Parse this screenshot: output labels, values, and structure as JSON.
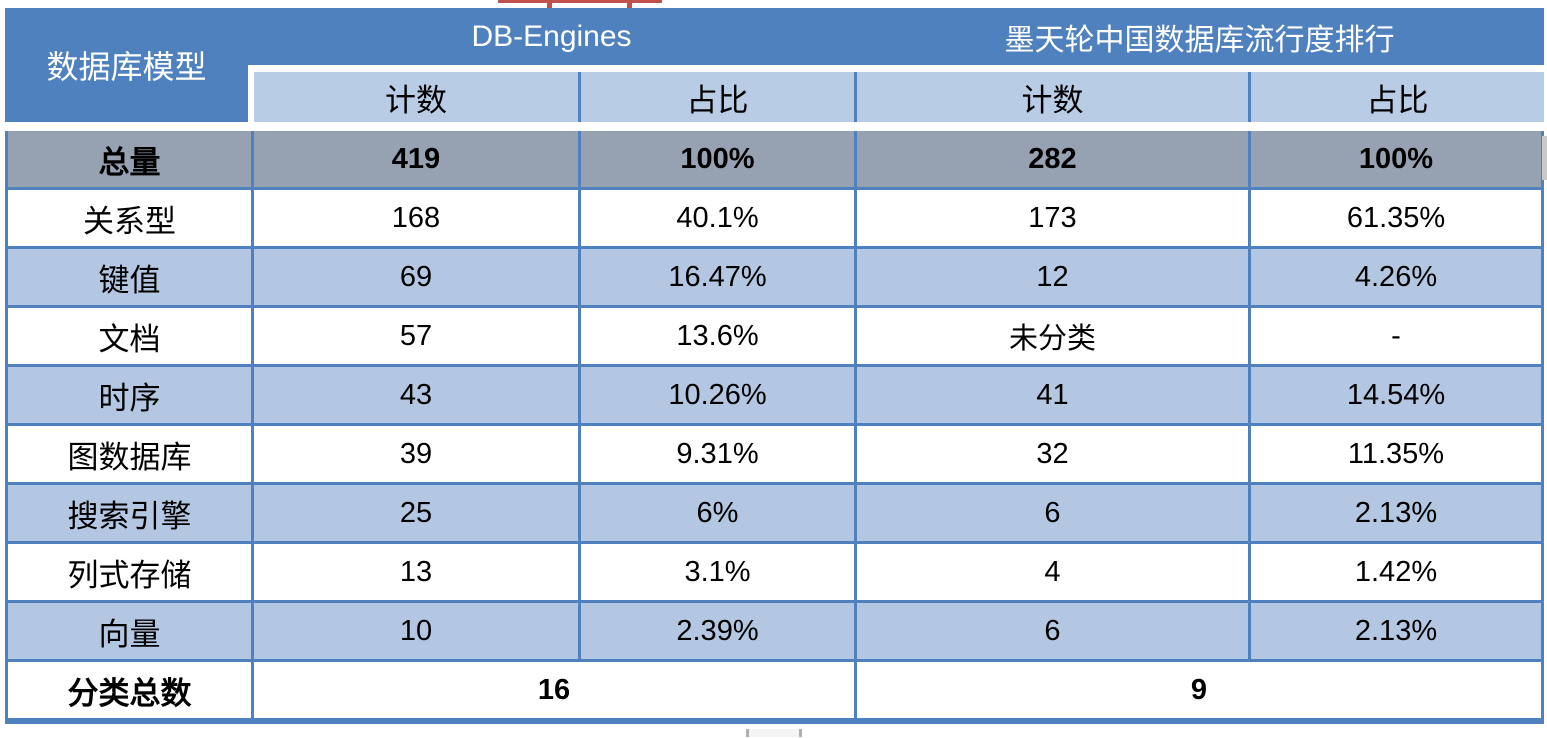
{
  "table": {
    "corner_label": "数据库模型",
    "groups": [
      {
        "label": "DB-Engines"
      },
      {
        "label": "墨天轮中国数据库流行度排行"
      }
    ],
    "subheaders": {
      "count1": "计数",
      "share1": "占比",
      "count2": "计数",
      "share2": "占比"
    },
    "rows": [
      {
        "label": "总量",
        "cells": [
          "419",
          "100%",
          "282",
          "100%"
        ]
      },
      {
        "label": "关系型",
        "cells": [
          "168",
          "40.1%",
          "173",
          "61.35%"
        ]
      },
      {
        "label": "键值",
        "cells": [
          "69",
          "16.47%",
          "12",
          "4.26%"
        ]
      },
      {
        "label": "文档",
        "cells": [
          "57",
          "13.6%",
          "未分类",
          "-"
        ]
      },
      {
        "label": "时序",
        "cells": [
          "43",
          "10.26%",
          "41",
          "14.54%"
        ]
      },
      {
        "label": "图数据库",
        "cells": [
          "39",
          "9.31%",
          "32",
          "11.35%"
        ]
      },
      {
        "label": "搜索引擎",
        "cells": [
          "25",
          "6%",
          "6",
          "2.13%"
        ]
      },
      {
        "label": "列式存储",
        "cells": [
          "13",
          "3.1%",
          "4",
          "1.42%"
        ]
      },
      {
        "label": "向量",
        "cells": [
          "10",
          "2.39%",
          "6",
          "2.13%"
        ]
      }
    ],
    "footer": {
      "label": "分类总数",
      "values": [
        "16",
        "9"
      ]
    }
  },
  "colors": {
    "header_blue": "#4E81BD",
    "subheader_blue": "#B9CCE5",
    "row_shade_blue": "#B4C7E2",
    "total_row_gray": "#96A1B1",
    "grid_border_blue": "#4E81BD",
    "annotation_red": "#C0504D"
  },
  "chart_data": {
    "type": "table",
    "title": "数据库模型分类对比：DB-Engines vs 墨天轮中国数据库流行度排行",
    "column_groups": [
      "DB-Engines",
      "墨天轮中国数据库流行度排行"
    ],
    "columns": [
      "数据库模型",
      "DB-Engines 计数",
      "DB-Engines 占比",
      "墨天轮 计数",
      "墨天轮 占比"
    ],
    "rows": [
      [
        "总量",
        "419",
        "100%",
        "282",
        "100%"
      ],
      [
        "关系型",
        "168",
        "40.1%",
        "173",
        "61.35%"
      ],
      [
        "键值",
        "69",
        "16.47%",
        "12",
        "4.26%"
      ],
      [
        "文档",
        "57",
        "13.6%",
        "未分类",
        "-"
      ],
      [
        "时序",
        "43",
        "10.26%",
        "41",
        "14.54%"
      ],
      [
        "图数据库",
        "39",
        "9.31%",
        "32",
        "11.35%"
      ],
      [
        "搜索引擎",
        "25",
        "6%",
        "6",
        "2.13%"
      ],
      [
        "列式存储",
        "13",
        "3.1%",
        "4",
        "1.42%"
      ],
      [
        "向量",
        "10",
        "2.39%",
        "6",
        "2.13%"
      ],
      [
        "分类总数",
        "16",
        "",
        "9",
        ""
      ]
    ]
  }
}
